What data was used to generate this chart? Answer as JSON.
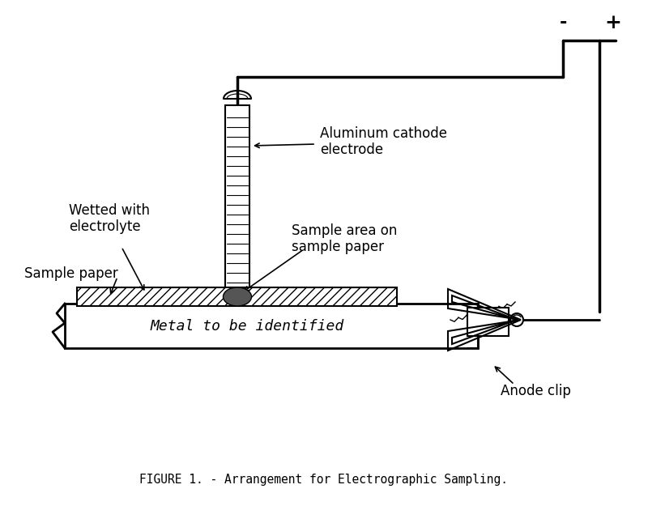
{
  "title": "FIGURE 1. - Arrangement for Electrographic Sampling.",
  "bg_color": "#ffffff",
  "line_color": "#000000",
  "hatch_color": "#000000",
  "labels": {
    "aluminum_cathode": "Aluminum cathode\nelectrode",
    "wetted": "Wetted with\nelectrolyte",
    "sample_paper": "Sample paper",
    "sample_area": "Sample area on\nsample paper",
    "metal": "Metal to be identified",
    "anode_clip": "Anode clip",
    "minus": "-",
    "plus": "+"
  },
  "figsize": [
    8.0,
    6.25
  ],
  "dpi": 100
}
